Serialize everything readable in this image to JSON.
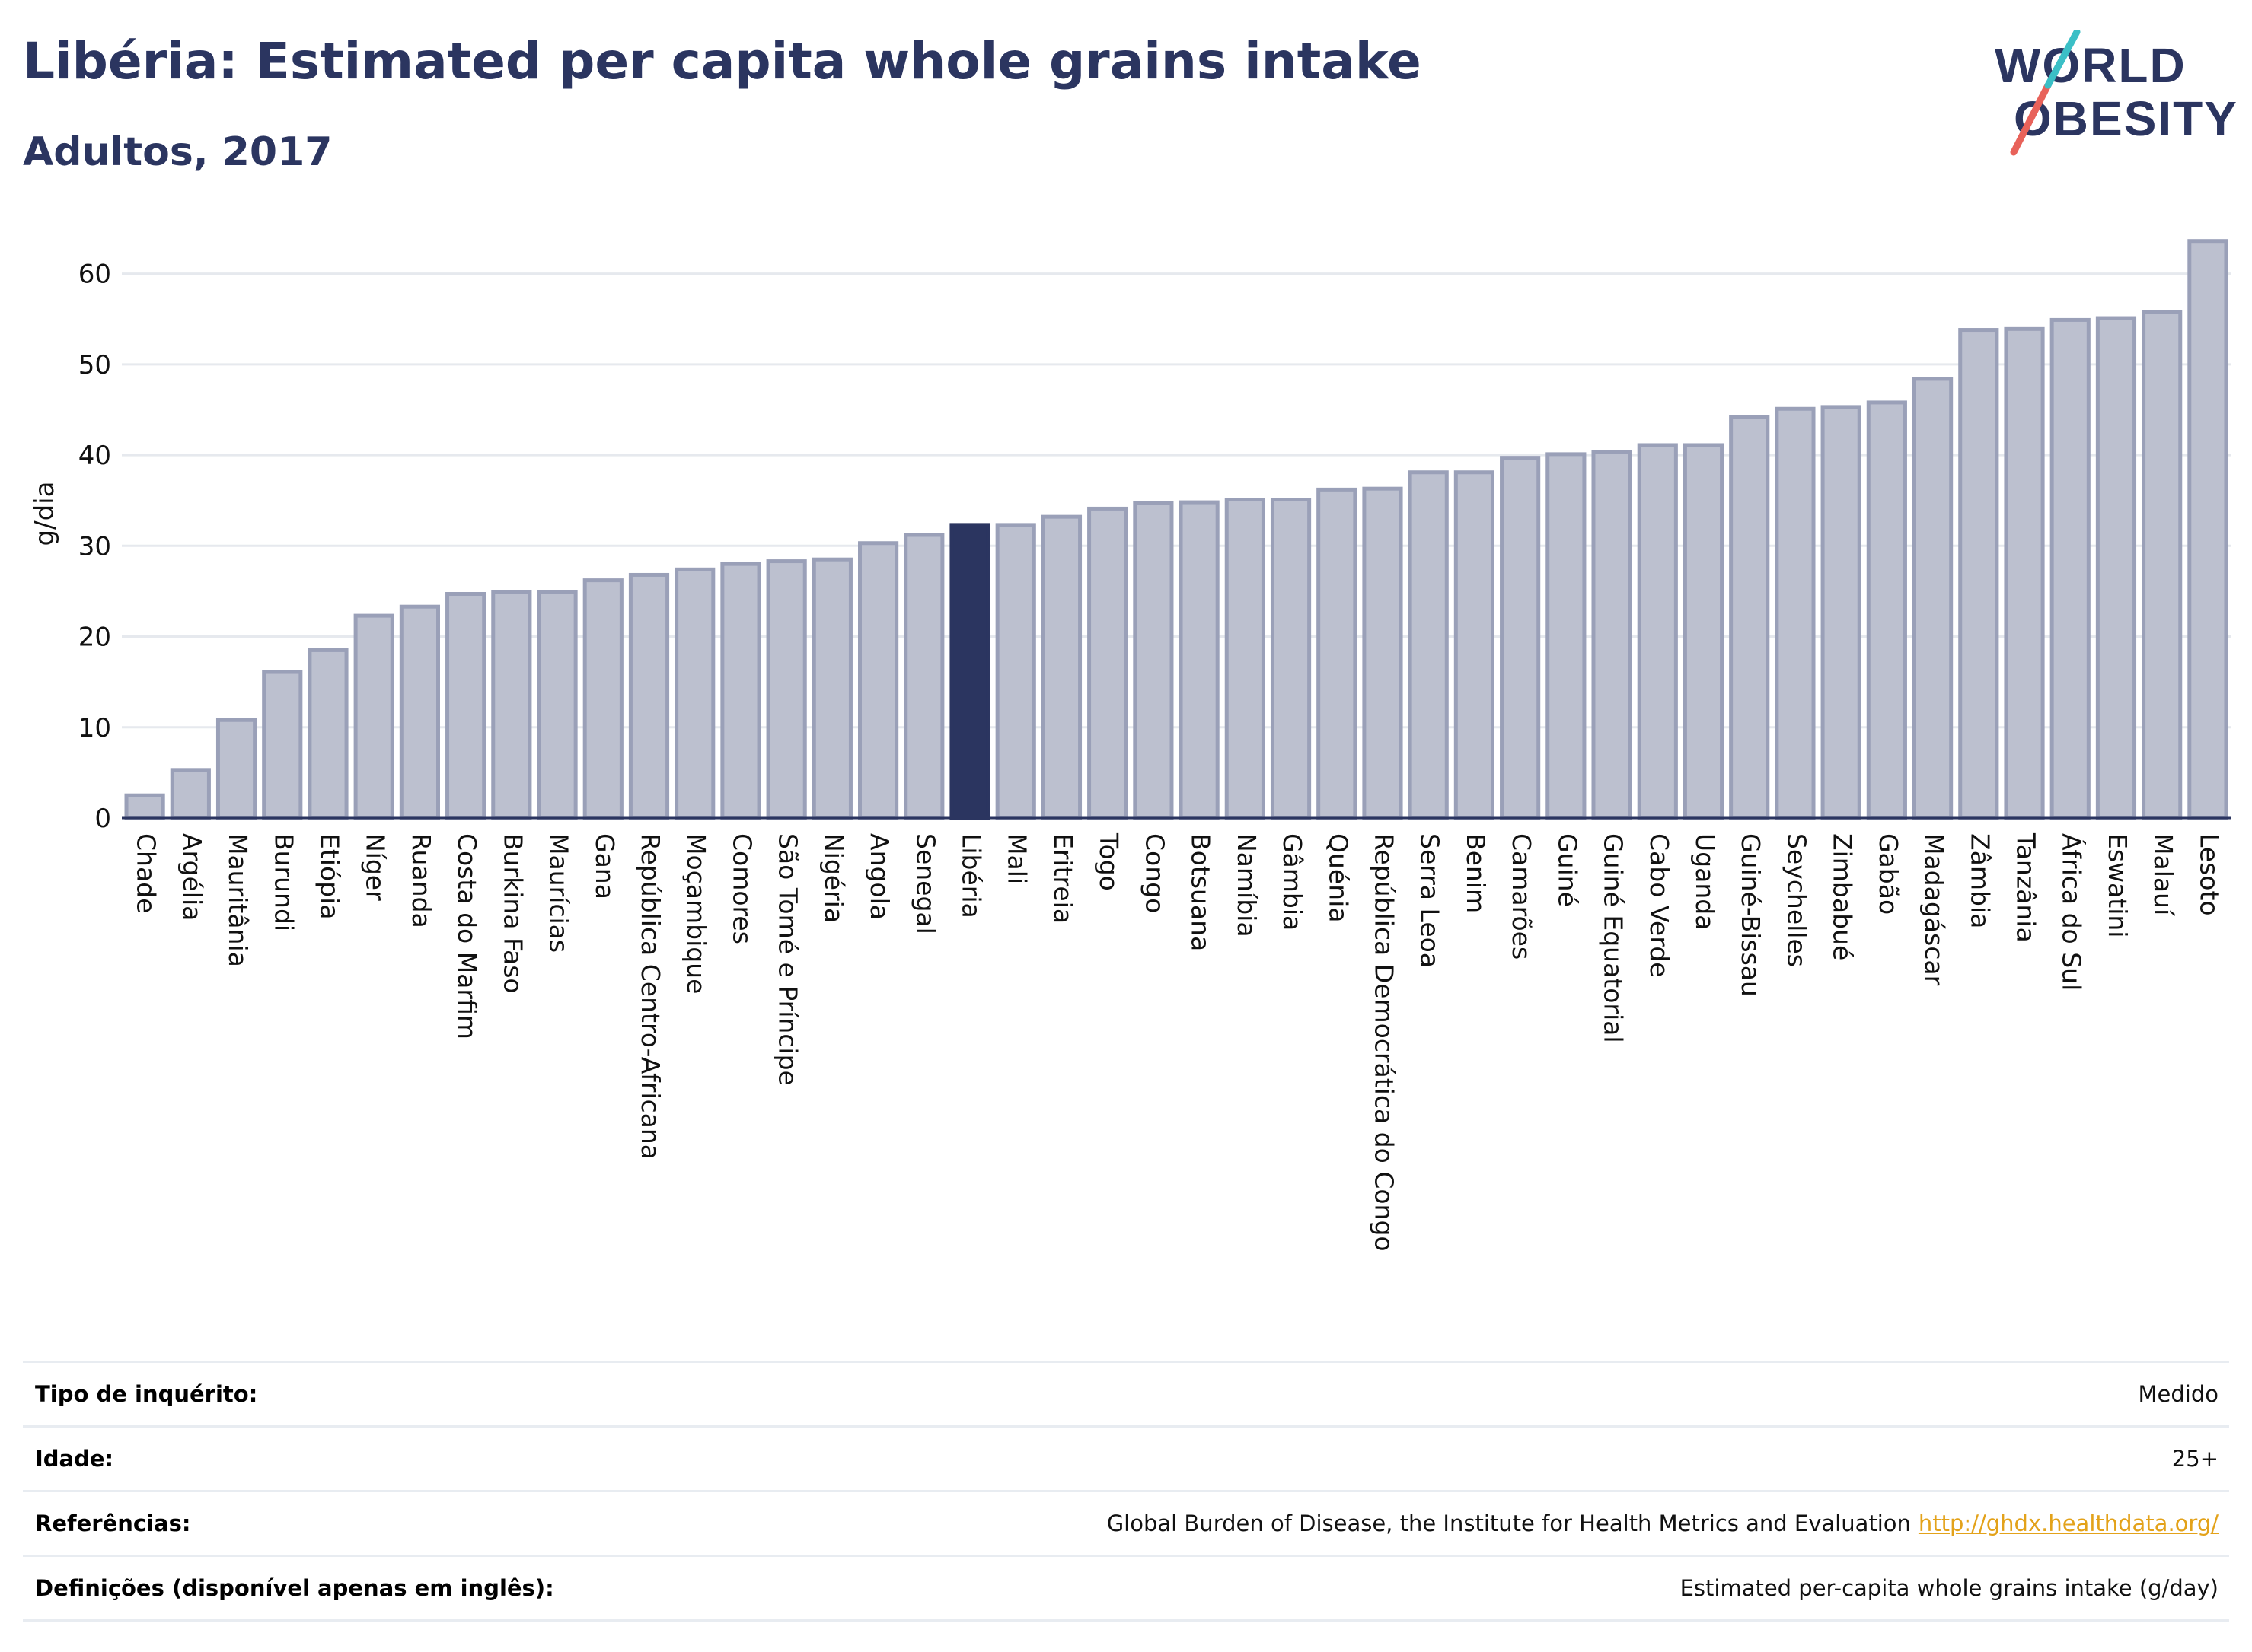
{
  "header": {
    "title": "Libéria: Estimated per capita whole grains intake",
    "subtitle": "Adultos, 2017"
  },
  "logo": {
    "line1": "WORLD",
    "line2": "OBESITY",
    "slash_colors": [
      "#e8625a",
      "#3bbfc6"
    ],
    "text_color": "#2b3560"
  },
  "colors": {
    "highlight_bar": "#2b3560",
    "bar_fill": "#bcc0cf",
    "bar_stroke": "#9aa0b8",
    "grid": "#e6e9ee",
    "axis": "#2b3560"
  },
  "chart_data": {
    "type": "bar",
    "ylabel": "g/dia",
    "ylim": [
      0,
      65
    ],
    "yticks": [
      0,
      10,
      20,
      30,
      40,
      50,
      60
    ],
    "highlight": "Libéria",
    "grid": true,
    "categories": [
      "Chade",
      "Argélia",
      "Mauritânia",
      "Burundi",
      "Etiópia",
      "Níger",
      "Ruanda",
      "Costa do Marfim",
      "Burkina Faso",
      "Maurícias",
      "Gana",
      "República Centro-Africana",
      "Moçambique",
      "Comores",
      "São Tomé e Príncipe",
      "Nigéria",
      "Angola",
      "Senegal",
      "Libéria",
      "Mali",
      "Eritreia",
      "Togo",
      "Congo",
      "Botsuana",
      "Namíbia",
      "Gâmbia",
      "Quénia",
      "República Democrática do Congo",
      "Serra Leoa",
      "Benim",
      "Camarões",
      "Guiné",
      "Guiné Equatorial",
      "Cabo Verde",
      "Uganda",
      "Guiné-Bissau",
      "Seychelles",
      "Zimbabué",
      "Gabão",
      "Madagáscar",
      "Zâmbia",
      "Tanzânia",
      "África do Sul",
      "Eswatini",
      "Malauí",
      "Lesoto"
    ],
    "values": [
      2.5,
      5.3,
      10.8,
      16.1,
      18.5,
      22.3,
      23.3,
      24.7,
      24.9,
      24.9,
      26.2,
      26.8,
      27.4,
      28.0,
      28.3,
      28.5,
      30.3,
      31.2,
      32.3,
      32.3,
      33.2,
      34.1,
      34.7,
      34.8,
      35.1,
      35.1,
      36.2,
      36.3,
      38.1,
      38.1,
      39.7,
      40.1,
      40.3,
      41.1,
      41.1,
      44.2,
      45.1,
      45.3,
      45.8,
      48.4,
      53.8,
      53.9,
      54.9,
      55.1,
      55.8,
      63.6
    ]
  },
  "meta": {
    "rows": [
      {
        "label": "Tipo de inquérito:",
        "value": "Medido"
      },
      {
        "label": "Idade:",
        "value": "25+"
      },
      {
        "label": "Referências:",
        "value": "Global Burden of Disease, the Institute for Health Metrics and Evaluation",
        "link": "http://ghdx.healthdata.org/"
      },
      {
        "label": "Definições (disponível apenas em inglês):",
        "value": "Estimated per-capita whole grains intake (g/day)"
      }
    ]
  }
}
